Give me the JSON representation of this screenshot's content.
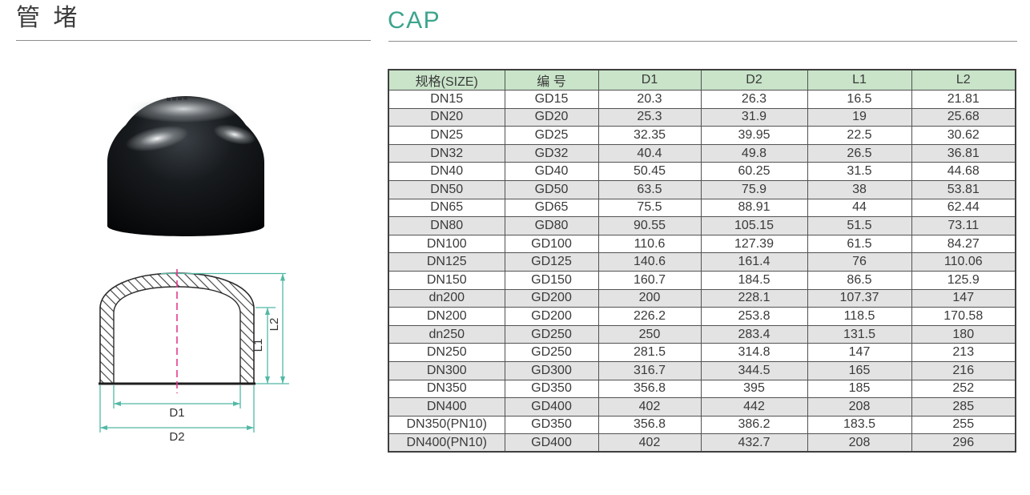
{
  "colors": {
    "accent_teal": "#3da48e",
    "header_bg": "#c9e4c9",
    "row_alt_bg": "#e3e3e3",
    "dimension_line": "#52b9a5",
    "centerline_pink": "#e23a8e"
  },
  "header": {
    "title_zh": "管 堵",
    "title_en": "CAP"
  },
  "diagram": {
    "labels": {
      "d1": "D1",
      "d2": "D2",
      "l1": "L1",
      "l2": "L2"
    }
  },
  "table": {
    "columns": [
      "规格(SIZE)",
      "编 号",
      "D1",
      "D2",
      "L1",
      "L2"
    ],
    "rows": [
      [
        "DN15",
        "GD15",
        "20.3",
        "26.3",
        "16.5",
        "21.81"
      ],
      [
        "DN20",
        "GD20",
        "25.3",
        "31.9",
        "19",
        "25.68"
      ],
      [
        "DN25",
        "GD25",
        "32.35",
        "39.95",
        "22.5",
        "30.62"
      ],
      [
        "DN32",
        "GD32",
        "40.4",
        "49.8",
        "26.5",
        "36.81"
      ],
      [
        "DN40",
        "GD40",
        "50.45",
        "60.25",
        "31.5",
        "44.68"
      ],
      [
        "DN50",
        "GD50",
        "63.5",
        "75.9",
        "38",
        "53.81"
      ],
      [
        "DN65",
        "GD65",
        "75.5",
        "88.91",
        "44",
        "62.44"
      ],
      [
        "DN80",
        "GD80",
        "90.55",
        "105.15",
        "51.5",
        "73.11"
      ],
      [
        "DN100",
        "GD100",
        "110.6",
        "127.39",
        "61.5",
        "84.27"
      ],
      [
        "DN125",
        "GD125",
        "140.6",
        "161.4",
        "76",
        "110.06"
      ],
      [
        "DN150",
        "GD150",
        "160.7",
        "184.5",
        "86.5",
        "125.9"
      ],
      [
        "dn200",
        "GD200",
        "200",
        "228.1",
        "107.37",
        "147"
      ],
      [
        "DN200",
        "GD200",
        "226.2",
        "253.8",
        "118.5",
        "170.58"
      ],
      [
        "dn250",
        "GD250",
        "250",
        "283.4",
        "131.5",
        "180"
      ],
      [
        "DN250",
        "GD250",
        "281.5",
        "314.8",
        "147",
        "213"
      ],
      [
        "DN300",
        "GD300",
        "316.7",
        "344.5",
        "165",
        "216"
      ],
      [
        "DN350",
        "GD350",
        "356.8",
        "395",
        "185",
        "252"
      ],
      [
        "DN400",
        "GD400",
        "402",
        "442",
        "208",
        "285"
      ],
      [
        "DN350(PN10)",
        "GD350",
        "356.8",
        "386.2",
        "183.5",
        "255"
      ],
      [
        "DN400(PN10)",
        "GD400",
        "402",
        "432.7",
        "208",
        "296"
      ]
    ]
  }
}
